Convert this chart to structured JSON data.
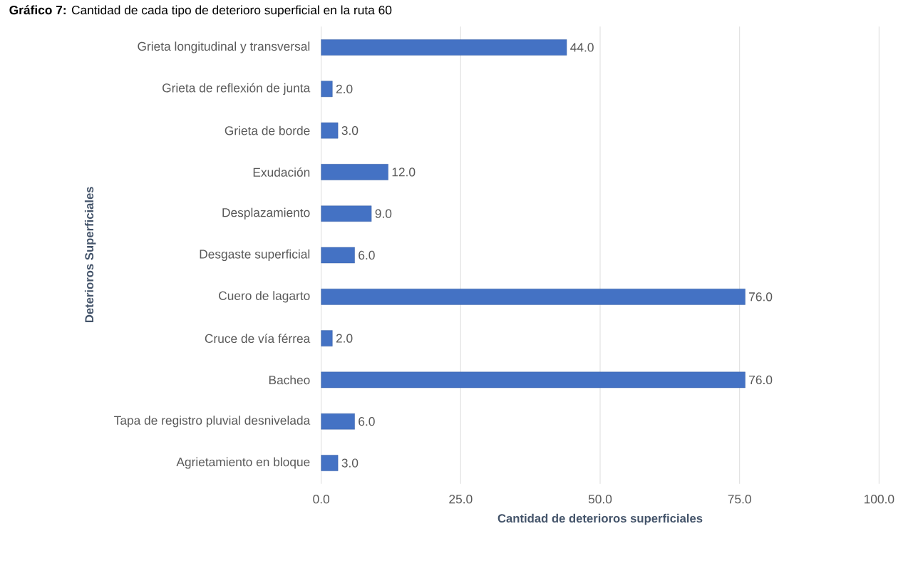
{
  "chart_data": {
    "type": "bar",
    "orientation": "horizontal",
    "title": "**Gráfico 7:** Cantidad de cada tipo de deterioro superficial en la ruta 60",
    "xlabel": "Cantidad de deterioros superficiales",
    "ylabel": "Deterioros Superficiales",
    "categories": [
      "Grieta longitudinal y transversal",
      "Grieta de reflexión de junta",
      "Grieta de borde",
      "Exudación",
      "Desplazamiento",
      "Desgaste superficial",
      "Cuero de lagarto",
      "Cruce de vía férrea",
      "Bacheo",
      "Tapa de registro pluvial desnivelada",
      "Agrietamiento en bloque"
    ],
    "values": [
      44,
      2,
      3,
      12,
      9,
      6,
      76,
      2,
      76,
      6,
      3
    ],
    "value_labels": [
      "44.0",
      "2.0",
      "3.0",
      "12.0",
      "9.0",
      "6.0",
      "76.0",
      "2.0",
      "76.0",
      "6.0",
      "3.0"
    ],
    "color": "#4472c4",
    "xlim": [
      0,
      100
    ],
    "xticks": [
      {
        "value": 0,
        "label": "0.0"
      },
      {
        "value": 25,
        "label": "25.0"
      },
      {
        "value": 50,
        "label": "50.0"
      },
      {
        "value": 75,
        "label": "75.0"
      },
      {
        "value": 100,
        "label": "100.0"
      }
    ],
    "grid": "x"
  }
}
